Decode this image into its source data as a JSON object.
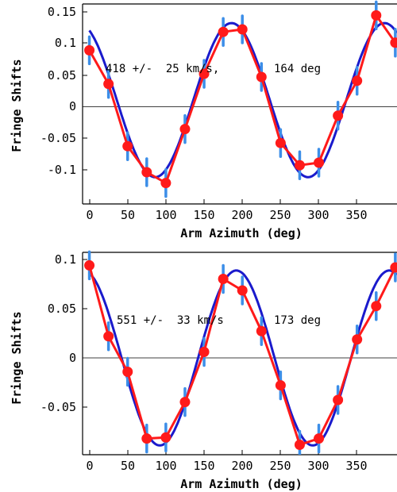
{
  "chart_data": [
    {
      "type": "line",
      "xlabel": "Arm Azimuth (deg)",
      "ylabel": "Fringe Shifts",
      "xlim": [
        -8,
        362
      ],
      "ylim": [
        -0.157,
        0.158
      ],
      "xticks": [
        0,
        50,
        100,
        150,
        200,
        250,
        300,
        350
      ],
      "xtick_labels": [
        "0",
        "50",
        "100",
        "150",
        "200",
        "250",
        "300",
        "350"
      ],
      "yticks": [
        0.15,
        0.1,
        0.05,
        0,
        -0.05,
        -0.1
      ],
      "ytick_labels": [
        "0.15",
        "0.1",
        "0.05",
        "0",
        "-0.05",
        "-0.1"
      ],
      "grid": false,
      "annotations": [
        "418 +/-  25 km/s,",
        "164 deg"
      ],
      "colors": {
        "data": "#ff1a1a",
        "fit": "#1a1acc",
        "error": "#3c8ee8"
      },
      "series": [
        {
          "x": [
            0,
            22.5,
            45,
            67.5,
            90,
            112.5,
            135,
            157.5,
            180,
            202.5,
            225,
            247.5,
            270,
            292.5,
            315,
            337.5,
            360
          ],
          "values": [
            0.085,
            0.032,
            -0.066,
            -0.107,
            -0.124,
            -0.039,
            0.048,
            0.114,
            0.118,
            0.043,
            -0.061,
            -0.096,
            -0.092,
            -0.018,
            0.037,
            0.14,
            0.097
          ]
        }
      ]
    },
    {
      "type": "line",
      "xlabel": "Arm Azimuth (deg)",
      "ylabel": "Fringe Shifts",
      "xlim": [
        -8,
        362
      ],
      "ylim": [
        -0.0885,
        0.1055
      ],
      "xticks": [
        0,
        50,
        100,
        150,
        200,
        250,
        300,
        350
      ],
      "xtick_labels": [
        "0",
        "50",
        "100",
        "150",
        "200",
        "250",
        "300",
        "350"
      ],
      "yticks": [
        0.1,
        0.05,
        0,
        -0.05
      ],
      "ytick_labels": [
        "0.1",
        "0.05",
        "0",
        "-0.05"
      ],
      "grid": false,
      "annotations": [
        "551 +/-  33 km/s",
        "173 deg"
      ],
      "colors": {
        "data": "#ff1a1a",
        "fit": "#1a1acc",
        "error": "#3c8ee8"
      },
      "series": [
        {
          "x": [
            0,
            22.5,
            45,
            67.5,
            90,
            112.5,
            135,
            157.5,
            180,
            202.5,
            225,
            247.5,
            270,
            292.5,
            315,
            337.5,
            360
          ],
          "values": [
            0.093,
            0.025,
            -0.009,
            -0.073,
            -0.072,
            -0.038,
            0.01,
            0.08,
            0.069,
            0.03,
            -0.022,
            -0.079,
            -0.073,
            -0.036,
            0.022,
            0.054,
            0.091
          ]
        }
      ]
    }
  ]
}
